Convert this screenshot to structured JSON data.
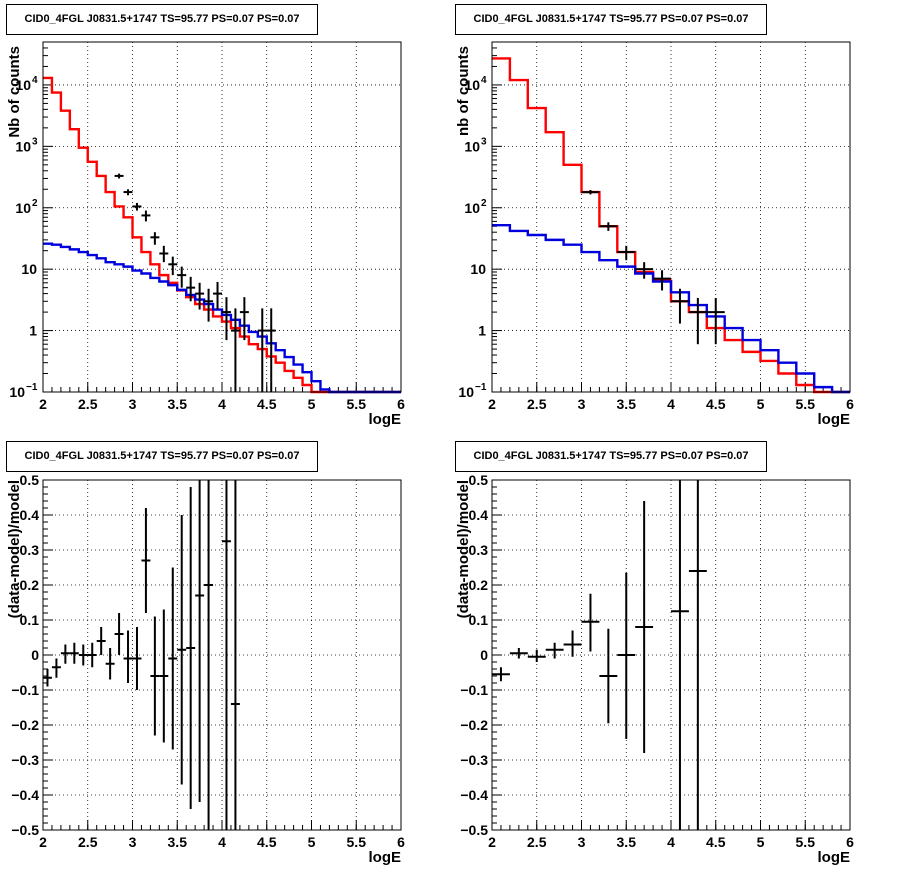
{
  "chart_data": [
    {
      "type": "line",
      "title": "CID0_4FGL J0831.5+1747 TS=95.77 PS=0.07 PS=0.07",
      "xlabel": "logE",
      "ylabel": "Nb of counts",
      "xlim": [
        2,
        6
      ],
      "ylim": [
        0.1,
        50000
      ],
      "yscale": "log",
      "grid": true,
      "xticks": [
        "2",
        "2.5",
        "3",
        "3.5",
        "4",
        "4.5",
        "5",
        "5.5",
        "6"
      ],
      "yticks": [
        {
          "v": 0.1,
          "m": "10",
          "e": "−1"
        },
        {
          "v": 1,
          "m": "1",
          "e": ""
        },
        {
          "v": 10,
          "m": "10",
          "e": ""
        },
        {
          "v": 100,
          "m": "10",
          "e": "2"
        },
        {
          "v": 1000,
          "m": "10",
          "e": "3"
        },
        {
          "v": 10000,
          "m": "10",
          "e": "4"
        }
      ],
      "series": [
        {
          "role": "total-model",
          "color": "#ff0000",
          "binwidth": 0.1,
          "edges_start": 2.0,
          "values": [
            13000,
            7500,
            3800,
            1900,
            950,
            560,
            330,
            180,
            105,
            70,
            33,
            19,
            12,
            8,
            6,
            4.5,
            3.5,
            2.7,
            2.2,
            1.7,
            1.4,
            1.1,
            0.8,
            0.6,
            0.5,
            0.38,
            0.3,
            0.22,
            0.17,
            0.13,
            0.1,
            0.1,
            0.1,
            0.1,
            0.1,
            0.1,
            0.1,
            0.1,
            0.1,
            0.1
          ]
        },
        {
          "role": "background-model",
          "color": "#0000dd",
          "binwidth": 0.1,
          "edges_start": 2.0,
          "values": [
            26,
            25,
            23,
            21,
            19,
            17,
            15,
            13,
            12,
            11,
            9.5,
            8.5,
            7.2,
            6.3,
            5.5,
            4.6,
            3.8,
            3.2,
            2.7,
            2.2,
            1.8,
            1.5,
            1.2,
            0.95,
            0.8,
            0.62,
            0.48,
            0.37,
            0.28,
            0.21,
            0.15,
            0.11,
            0.1,
            0.1,
            0.1,
            0.1,
            0.1,
            0.1,
            0.1,
            0.1
          ]
        },
        {
          "role": "data",
          "color": "#000000",
          "type": "errorbar",
          "points": [
            {
              "x": 2.85,
              "y": 330,
              "lo": 300,
              "hi": 360,
              "xerr": 0.05
            },
            {
              "x": 2.95,
              "y": 180,
              "lo": 160,
              "hi": 200,
              "xerr": 0.05
            },
            {
              "x": 3.05,
              "y": 105,
              "lo": 90,
              "hi": 120,
              "xerr": 0.05
            },
            {
              "x": 3.15,
              "y": 75,
              "lo": 60,
              "hi": 90,
              "xerr": 0.05
            },
            {
              "x": 3.25,
              "y": 33,
              "lo": 25,
              "hi": 40,
              "xerr": 0.05
            },
            {
              "x": 3.35,
              "y": 18,
              "lo": 13,
              "hi": 24,
              "xerr": 0.05
            },
            {
              "x": 3.45,
              "y": 12,
              "lo": 8,
              "hi": 16,
              "xerr": 0.05
            },
            {
              "x": 3.55,
              "y": 8,
              "lo": 5,
              "hi": 11,
              "xerr": 0.05
            },
            {
              "x": 3.65,
              "y": 5,
              "lo": 3,
              "hi": 7.5,
              "xerr": 0.05
            },
            {
              "x": 3.75,
              "y": 4,
              "lo": 2.2,
              "hi": 6,
              "xerr": 0.05
            },
            {
              "x": 3.85,
              "y": 3,
              "lo": 1.4,
              "hi": 4.8,
              "xerr": 0.05
            },
            {
              "x": 3.95,
              "y": 4,
              "lo": 2.2,
              "hi": 6.2,
              "xerr": 0.05
            },
            {
              "x": 4.05,
              "y": 2,
              "lo": 0.7,
              "hi": 3.5,
              "xerr": 0.05
            },
            {
              "x": 4.15,
              "y": 1,
              "lo": 0.1,
              "hi": 2.3,
              "xerr": 0.05
            },
            {
              "x": 4.25,
              "y": 2,
              "lo": 0.7,
              "hi": 3.5,
              "xerr": 0.05
            },
            {
              "x": 4.45,
              "y": 1,
              "lo": 0.1,
              "hi": 2.3,
              "xerr": 0.05
            },
            {
              "x": 4.55,
              "y": 1,
              "lo": 0.1,
              "hi": 2.3,
              "xerr": 0.05
            }
          ]
        }
      ]
    },
    {
      "type": "line",
      "title": "CID0_4FGL J0831.5+1747 TS=95.77 PS=0.07 PS=0.07",
      "xlabel": "logE",
      "ylabel": "nb of counts",
      "xlim": [
        2,
        6
      ],
      "ylim": [
        0.1,
        50000
      ],
      "yscale": "log",
      "grid": true,
      "xticks": [
        "2",
        "2.5",
        "3",
        "3.5",
        "4",
        "4.5",
        "5",
        "5.5",
        "6"
      ],
      "yticks": [
        {
          "v": 0.1,
          "m": "10",
          "e": "−1"
        },
        {
          "v": 1,
          "m": "1",
          "e": ""
        },
        {
          "v": 10,
          "m": "10",
          "e": ""
        },
        {
          "v": 100,
          "m": "10",
          "e": "2"
        },
        {
          "v": 1000,
          "m": "10",
          "e": "3"
        },
        {
          "v": 10000,
          "m": "10",
          "e": "4"
        }
      ],
      "series": [
        {
          "role": "total-model",
          "color": "#ff0000",
          "binwidth": 0.2,
          "edges_start": 2.0,
          "values": [
            27000,
            12000,
            4200,
            1700,
            500,
            180,
            50,
            19,
            9,
            6.5,
            3,
            2,
            1.1,
            0.7,
            0.45,
            0.32,
            0.2,
            0.13,
            0.1,
            0.1
          ]
        },
        {
          "role": "background-model",
          "color": "#0000dd",
          "binwidth": 0.2,
          "edges_start": 2.0,
          "values": [
            52,
            42,
            36,
            30,
            25,
            19,
            14,
            11,
            8.5,
            6.3,
            4.2,
            2.6,
            1.7,
            1.1,
            0.7,
            0.48,
            0.3,
            0.2,
            0.12,
            0.1
          ]
        },
        {
          "role": "data",
          "color": "#000000",
          "type": "errorbar",
          "points": [
            {
              "x": 3.1,
              "y": 180,
              "lo": 165,
              "hi": 195,
              "xerr": 0.1
            },
            {
              "x": 3.3,
              "y": 50,
              "lo": 42,
              "hi": 58,
              "xerr": 0.1
            },
            {
              "x": 3.5,
              "y": 19,
              "lo": 14,
              "hi": 24,
              "xerr": 0.1
            },
            {
              "x": 3.7,
              "y": 10,
              "lo": 7,
              "hi": 13,
              "xerr": 0.1
            },
            {
              "x": 3.9,
              "y": 7,
              "lo": 4.5,
              "hi": 9.6,
              "xerr": 0.1
            },
            {
              "x": 4.1,
              "y": 3,
              "lo": 1.3,
              "hi": 4.8,
              "xerr": 0.1
            },
            {
              "x": 4.3,
              "y": 2,
              "lo": 0.6,
              "hi": 3.4,
              "xerr": 0.1
            },
            {
              "x": 4.5,
              "y": 2,
              "lo": 0.6,
              "hi": 3.4,
              "xerr": 0.1
            }
          ]
        }
      ]
    },
    {
      "type": "scatter",
      "title": "CID0_4FGL J0831.5+1747 TS=95.77 PS=0.07 PS=0.07",
      "xlabel": "logE",
      "ylabel": "(data-model)/model",
      "xlim": [
        2,
        6
      ],
      "ylim": [
        -0.5,
        0.5
      ],
      "yscale": "linear",
      "grid": true,
      "xticks": [
        "2",
        "2.5",
        "3",
        "3.5",
        "4",
        "4.5",
        "5",
        "5.5",
        "6"
      ],
      "yticks_labels": [
        "−0.5",
        "−0.4",
        "−0.3",
        "−0.2",
        "−0.1",
        "0",
        "0.1",
        "0.2",
        "0.3",
        "0.4",
        "0.5"
      ],
      "series": [
        {
          "role": "residuals",
          "color": "#000000",
          "type": "errorbar",
          "points": [
            {
              "x": 2.05,
              "y": -0.065,
              "lo": -0.09,
              "hi": -0.04,
              "xerr": 0.05
            },
            {
              "x": 2.15,
              "y": -0.035,
              "lo": -0.065,
              "hi": -0.01,
              "xerr": 0.05
            },
            {
              "x": 2.25,
              "y": 0.005,
              "lo": -0.025,
              "hi": 0.03,
              "xerr": 0.05
            },
            {
              "x": 2.35,
              "y": 0.005,
              "lo": -0.025,
              "hi": 0.035,
              "xerr": 0.05
            },
            {
              "x": 2.45,
              "y": 0.0,
              "lo": -0.03,
              "hi": 0.03,
              "xerr": 0.05
            },
            {
              "x": 2.55,
              "y": 0.0,
              "lo": -0.035,
              "hi": 0.035,
              "xerr": 0.05
            },
            {
              "x": 2.65,
              "y": 0.04,
              "lo": 0.0,
              "hi": 0.08,
              "xerr": 0.05
            },
            {
              "x": 2.75,
              "y": -0.025,
              "lo": -0.07,
              "hi": 0.02,
              "xerr": 0.05
            },
            {
              "x": 2.85,
              "y": 0.06,
              "lo": 0.0,
              "hi": 0.12,
              "xerr": 0.05
            },
            {
              "x": 2.95,
              "y": -0.01,
              "lo": -0.08,
              "hi": 0.07,
              "xerr": 0.05
            },
            {
              "x": 3.05,
              "y": -0.01,
              "lo": -0.1,
              "hi": 0.08,
              "xerr": 0.05
            },
            {
              "x": 3.15,
              "y": 0.27,
              "lo": 0.12,
              "hi": 0.42,
              "xerr": 0.05
            },
            {
              "x": 3.25,
              "y": -0.06,
              "lo": -0.23,
              "hi": 0.11,
              "xerr": 0.05
            },
            {
              "x": 3.35,
              "y": -0.06,
              "lo": -0.25,
              "hi": 0.13,
              "xerr": 0.05
            },
            {
              "x": 3.45,
              "y": -0.01,
              "lo": -0.27,
              "hi": 0.25,
              "xerr": 0.05
            },
            {
              "x": 3.55,
              "y": 0.015,
              "lo": -0.37,
              "hi": 0.4,
              "xerr": 0.05
            },
            {
              "x": 3.65,
              "y": 0.02,
              "lo": -0.44,
              "hi": 0.48,
              "xerr": 0.05
            },
            {
              "x": 3.75,
              "y": 0.17,
              "lo": -0.42,
              "hi": 0.5,
              "xerr": 0.05
            },
            {
              "x": 3.85,
              "y": 0.2,
              "lo": -0.5,
              "hi": 0.5,
              "xerr": 0.05
            },
            {
              "x": 4.05,
              "y": 0.325,
              "lo": -0.5,
              "hi": 0.5,
              "xerr": 0.05
            },
            {
              "x": 4.15,
              "y": -0.14,
              "lo": -0.5,
              "hi": 0.5,
              "xerr": 0.05
            }
          ]
        }
      ]
    },
    {
      "type": "scatter",
      "title": "CID0_4FGL J0831.5+1747 TS=95.77 PS=0.07 PS=0.07",
      "xlabel": "logE",
      "ylabel": "(data-model)/model",
      "xlim": [
        2,
        6
      ],
      "ylim": [
        -0.5,
        0.5
      ],
      "yscale": "linear",
      "grid": true,
      "xticks": [
        "2",
        "2.5",
        "3",
        "3.5",
        "4",
        "4.5",
        "5",
        "5.5",
        "6"
      ],
      "yticks_labels": [
        "−0.5",
        "−0.4",
        "−0.3",
        "−0.2",
        "−0.1",
        "0",
        "0.1",
        "0.2",
        "0.3",
        "0.4",
        "0.5"
      ],
      "series": [
        {
          "role": "residuals",
          "color": "#000000",
          "type": "errorbar",
          "points": [
            {
              "x": 2.1,
              "y": -0.055,
              "lo": -0.075,
              "hi": -0.035,
              "xerr": 0.1
            },
            {
              "x": 2.3,
              "y": 0.005,
              "lo": -0.01,
              "hi": 0.02,
              "xerr": 0.1
            },
            {
              "x": 2.5,
              "y": -0.005,
              "lo": -0.02,
              "hi": 0.015,
              "xerr": 0.1
            },
            {
              "x": 2.7,
              "y": 0.015,
              "lo": -0.01,
              "hi": 0.035,
              "xerr": 0.1
            },
            {
              "x": 2.9,
              "y": 0.03,
              "lo": -0.005,
              "hi": 0.07,
              "xerr": 0.1
            },
            {
              "x": 3.1,
              "y": 0.095,
              "lo": 0.01,
              "hi": 0.175,
              "xerr": 0.1
            },
            {
              "x": 3.3,
              "y": -0.06,
              "lo": -0.195,
              "hi": 0.075,
              "xerr": 0.1
            },
            {
              "x": 3.5,
              "y": 0.0,
              "lo": -0.24,
              "hi": 0.235,
              "xerr": 0.1
            },
            {
              "x": 3.7,
              "y": 0.08,
              "lo": -0.28,
              "hi": 0.44,
              "xerr": 0.1
            },
            {
              "x": 4.1,
              "y": 0.125,
              "lo": -0.5,
              "hi": 0.5,
              "xerr": 0.1
            },
            {
              "x": 4.3,
              "y": 0.24,
              "lo": -0.5,
              "hi": 0.5,
              "xerr": 0.1
            }
          ]
        }
      ]
    }
  ]
}
